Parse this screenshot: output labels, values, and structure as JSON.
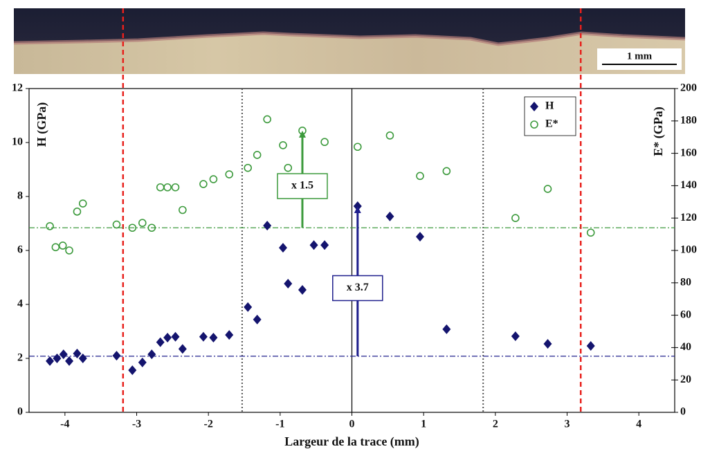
{
  "micrograph": {
    "scale_bar_label": "1 mm"
  },
  "chart_data": {
    "type": "scatter",
    "x_label": "Largeur de la trace (mm)",
    "y_label": "H (GPa)",
    "y2_label": "E* (GPa)",
    "xlim": [
      -4.5,
      4.5
    ],
    "xticks": [
      -4,
      -3,
      -2,
      -1,
      0,
      1,
      2,
      3,
      4
    ],
    "ylim": [
      0,
      12
    ],
    "yticks": [
      0,
      2,
      4,
      6,
      8,
      10,
      12
    ],
    "y2lim": [
      0,
      200
    ],
    "y2ticks": [
      0,
      20,
      40,
      60,
      80,
      100,
      120,
      140,
      160,
      180,
      200
    ],
    "legend": "upper right",
    "series": [
      {
        "name": "H",
        "color": "#14146e",
        "marker": "diamond",
        "x": [
          -4.21,
          -4.11,
          -4.02,
          -3.94,
          -3.83,
          -3.75,
          -3.28,
          -3.06,
          -2.92,
          -2.79,
          -2.67,
          -2.57,
          -2.46,
          -2.36,
          -2.07,
          -1.93,
          -1.71,
          -1.45,
          -1.32,
          -1.18,
          -0.96,
          -0.89,
          -0.69,
          -0.53,
          -0.38,
          0.08,
          0.53,
          0.95,
          1.32,
          2.28,
          2.73,
          3.33
        ],
        "values": [
          1.9,
          2.0,
          2.15,
          1.9,
          2.18,
          2.0,
          2.1,
          1.56,
          1.85,
          2.15,
          2.6,
          2.77,
          2.8,
          2.35,
          2.8,
          2.77,
          2.87,
          3.9,
          3.44,
          6.92,
          6.1,
          4.77,
          4.54,
          6.2,
          6.2,
          7.64,
          7.26,
          6.51,
          3.08,
          2.82,
          2.54,
          2.46
        ]
      },
      {
        "name": "E*",
        "color": "#3c9a3c",
        "marker": "circle",
        "axis": "y2",
        "x": [
          -4.21,
          -4.13,
          -4.03,
          -3.94,
          -3.83,
          -3.75,
          -3.28,
          -3.06,
          -2.92,
          -2.79,
          -2.67,
          -2.57,
          -2.46,
          -2.36,
          -2.07,
          -1.93,
          -1.71,
          -1.45,
          -1.32,
          -1.18,
          -0.96,
          -0.89,
          -0.69,
          -0.38,
          0.08,
          0.53,
          0.95,
          1.32,
          2.28,
          2.73,
          3.33
        ],
        "values": [
          115,
          102,
          103,
          100,
          124,
          129,
          116,
          114,
          117,
          114,
          139,
          139,
          139,
          125,
          141,
          144,
          147,
          151,
          159,
          181,
          165,
          151,
          174,
          167,
          164,
          171,
          146,
          149,
          120,
          138,
          111
        ]
      }
    ],
    "vlines": [
      {
        "value": -3.19,
        "color": "#e8201c",
        "style": "dashed"
      },
      {
        "value": 3.19,
        "color": "#e8201c",
        "style": "dashed"
      },
      {
        "value": -1.53,
        "color": "#555555",
        "style": "dotted"
      },
      {
        "value": 1.83,
        "color": "#555555",
        "style": "dotted"
      },
      {
        "value": 0,
        "color": "#000000",
        "style": "solid"
      }
    ],
    "hlines": [
      {
        "value": 114,
        "axis": "y2",
        "color": "#3c9a3c",
        "style": "dashdot"
      },
      {
        "value": 2.08,
        "color": "#1e1e8c",
        "style": "dashdot"
      }
    ],
    "annotations": [
      {
        "text": "x 1.5",
        "x": -0.69,
        "from": 114,
        "to": 174,
        "axis": "y2",
        "color": "#3c9a3c"
      },
      {
        "text": "x 3.7",
        "x": 0.08,
        "from": 2.08,
        "to": 7.64,
        "color": "#1e1e8c"
      }
    ]
  }
}
